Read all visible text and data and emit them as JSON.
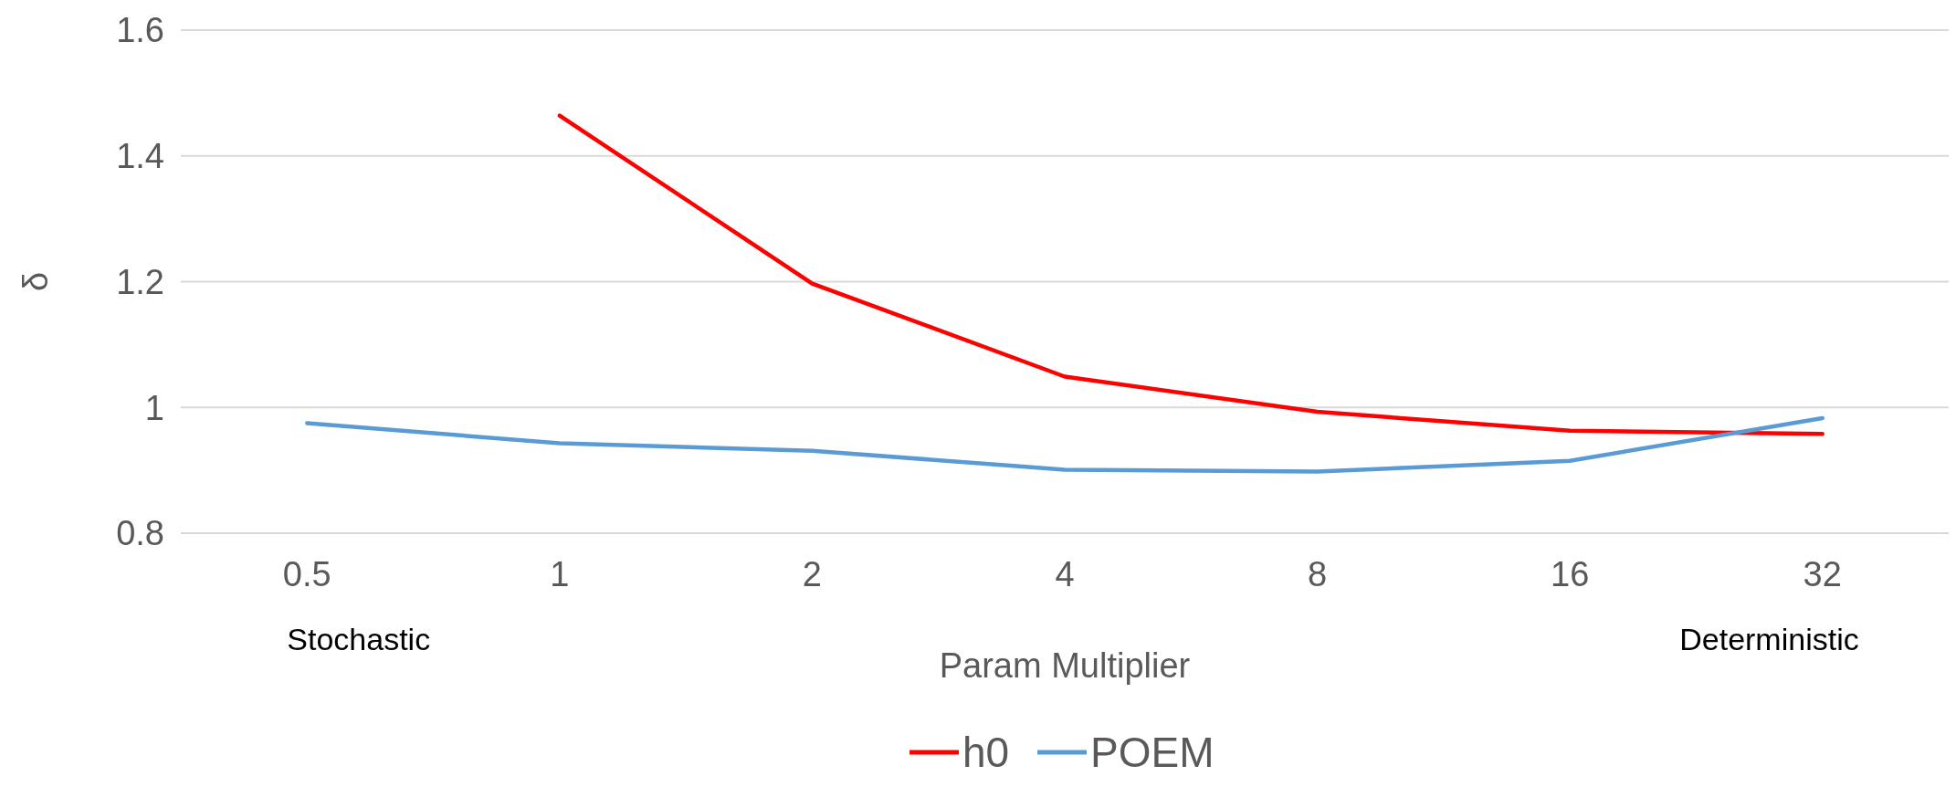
{
  "chart_data": {
    "type": "line",
    "xlabel": "Param Multiplier",
    "ylabel": "δ",
    "categories": [
      "0.5",
      "1",
      "2",
      "4",
      "8",
      "16",
      "32"
    ],
    "series": [
      {
        "name": "h0",
        "color": "#ff0000",
        "values": [
          null,
          1.464,
          1.197,
          1.049,
          0.993,
          0.963,
          0.958
        ]
      },
      {
        "name": "POEM",
        "color": "#5b9bd5",
        "values": [
          0.975,
          0.943,
          0.931,
          0.901,
          0.898,
          0.915,
          0.983
        ]
      }
    ],
    "ylim": [
      0.8,
      1.6
    ],
    "yticks": [
      {
        "value": 0.8,
        "label": "0.8"
      },
      {
        "value": 1,
        "label": "1"
      },
      {
        "value": 1.2,
        "label": "1.2"
      },
      {
        "value": 1.4,
        "label": "1.4"
      },
      {
        "value": 1.6,
        "label": "1.6"
      }
    ],
    "grid": "y",
    "legend": "bottom",
    "marker": "none",
    "line_style": "solid",
    "annotations": [
      "Stochastic",
      "Deterministic"
    ]
  }
}
